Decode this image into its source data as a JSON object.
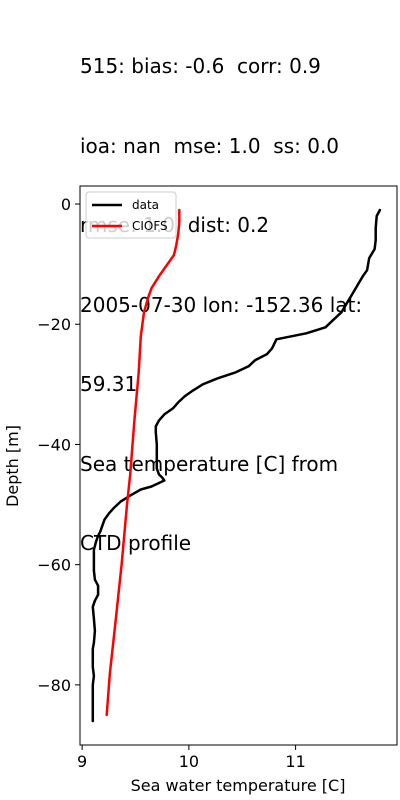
{
  "title_lines": [
    "515: bias: -0.6  corr: 0.9",
    "ioa: nan  mse: 1.0  ss: 0.0",
    "rmse: 1.0  dist: 0.2",
    "2005-07-30 lon: -152.36 lat:",
    "59.31",
    "Sea temperature [C] from",
    "CTD profile"
  ],
  "chart_data": {
    "type": "line",
    "title": "515: bias: -0.6  corr: 0.9\nioa: nan  mse: 1.0  ss: 0.0\nrmse: 1.0  dist: 0.2\n2005-07-30 lon: -152.36 lat:\n59.31\nSea temperature [C] from\nCTD profile",
    "xlabel": "Sea water temperature [C]",
    "ylabel": "Depth [m]",
    "xlim": [
      8.98,
      11.95
    ],
    "ylim": [
      -90,
      3
    ],
    "xticks": [
      9,
      10,
      11
    ],
    "yticks": [
      0,
      -20,
      -40,
      -60,
      -80
    ],
    "ytick_labels": [
      "0",
      "−20",
      "−40",
      "−60",
      "−80"
    ],
    "grid": false,
    "legend_position": "upper-left",
    "series": [
      {
        "name": "data",
        "color": "#000000",
        "points": [
          [
            11.79,
            -1
          ],
          [
            11.76,
            -2
          ],
          [
            11.75,
            -4
          ],
          [
            11.75,
            -6
          ],
          [
            11.74,
            -7.5
          ],
          [
            11.69,
            -9
          ],
          [
            11.67,
            -11
          ],
          [
            11.63,
            -12
          ],
          [
            11.58,
            -13.5
          ],
          [
            11.53,
            -15
          ],
          [
            11.48,
            -16.5
          ],
          [
            11.43,
            -18
          ],
          [
            11.34,
            -19.5
          ],
          [
            11.28,
            -20.5
          ],
          [
            11.1,
            -21.5
          ],
          [
            10.82,
            -22.5
          ],
          [
            10.78,
            -24
          ],
          [
            10.73,
            -25
          ],
          [
            10.62,
            -26
          ],
          [
            10.56,
            -27
          ],
          [
            10.44,
            -28
          ],
          [
            10.27,
            -29
          ],
          [
            10.13,
            -30
          ],
          [
            10.04,
            -31
          ],
          [
            9.96,
            -32
          ],
          [
            9.9,
            -33
          ],
          [
            9.85,
            -34
          ],
          [
            9.77,
            -35
          ],
          [
            9.72,
            -36
          ],
          [
            9.69,
            -37
          ],
          [
            9.69,
            -38
          ],
          [
            9.7,
            -40
          ],
          [
            9.7,
            -42
          ],
          [
            9.7,
            -44
          ],
          [
            9.72,
            -45
          ],
          [
            9.75,
            -45.5
          ],
          [
            9.77,
            -46
          ],
          [
            9.65,
            -47
          ],
          [
            9.55,
            -47.5
          ],
          [
            9.45,
            -48.5
          ],
          [
            9.36,
            -49.5
          ],
          [
            9.3,
            -50.5
          ],
          [
            9.25,
            -51.5
          ],
          [
            9.21,
            -52.5
          ],
          [
            9.19,
            -53.5
          ],
          [
            9.17,
            -54.5
          ],
          [
            9.15,
            -55.2
          ],
          [
            9.13,
            -56.2
          ],
          [
            9.11,
            -57.5
          ],
          [
            9.11,
            -59
          ],
          [
            9.11,
            -61
          ],
          [
            9.12,
            -62.5
          ],
          [
            9.15,
            -63.5
          ],
          [
            9.15,
            -65
          ],
          [
            9.12,
            -66
          ],
          [
            9.1,
            -67
          ],
          [
            9.11,
            -69
          ],
          [
            9.12,
            -71
          ],
          [
            9.11,
            -73
          ],
          [
            9.1,
            -74
          ],
          [
            9.1,
            -77
          ],
          [
            9.11,
            -78.5
          ],
          [
            9.1,
            -80
          ],
          [
            9.1,
            -83
          ],
          [
            9.1,
            -86
          ]
        ]
      },
      {
        "name": "CIOFS",
        "color": "#ff0000",
        "points": [
          [
            9.91,
            -1
          ],
          [
            9.91,
            -3
          ],
          [
            9.9,
            -5
          ],
          [
            9.88,
            -7
          ],
          [
            9.86,
            -8.5
          ],
          [
            9.8,
            -10
          ],
          [
            9.72,
            -12
          ],
          [
            9.65,
            -14
          ],
          [
            9.62,
            -15.5
          ],
          [
            9.58,
            -18
          ],
          [
            9.55,
            -22
          ],
          [
            9.53,
            -28
          ],
          [
            9.49,
            -36
          ],
          [
            9.45,
            -45
          ],
          [
            9.42,
            -50
          ],
          [
            9.37,
            -60
          ],
          [
            9.31,
            -70
          ],
          [
            9.26,
            -78
          ],
          [
            9.23,
            -85
          ]
        ]
      }
    ]
  }
}
